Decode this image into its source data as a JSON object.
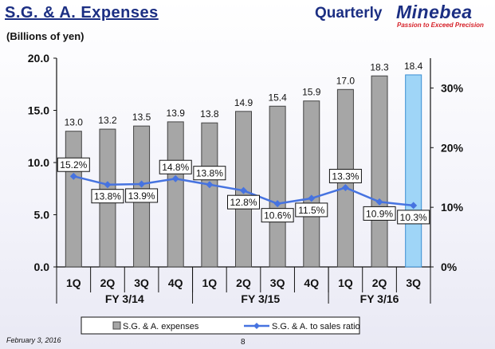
{
  "header": {
    "title": "S.G. & A. Expenses",
    "quarterly": "Quarterly",
    "logo": "Minebea",
    "tagline": "Passion to Exceed Precision",
    "unit": "(Billions of yen)"
  },
  "footer": {
    "date": "February 3, 2016",
    "page": "8"
  },
  "colors": {
    "bar": "#a6a6a6",
    "bar_highlight": "#9fd5f7",
    "line": "#4673e0"
  },
  "chart_data": {
    "type": "bar",
    "title": "S.G. & A. Expenses",
    "ylabel": "Billions of yen",
    "categories": [
      "1Q",
      "2Q",
      "3Q",
      "4Q",
      "1Q",
      "2Q",
      "3Q",
      "4Q",
      "1Q",
      "2Q",
      "3Q"
    ],
    "groups": [
      {
        "label": "FY 3/14",
        "count": 4
      },
      {
        "label": "FY 3/15",
        "count": 4
      },
      {
        "label": "FY 3/16",
        "count": 3
      }
    ],
    "ylim": [
      0,
      20
    ],
    "yticks": [
      "0.0",
      "5.0",
      "10.0",
      "15.0",
      "20.0"
    ],
    "y2lim": [
      0,
      35
    ],
    "y2ticks": [
      "0%",
      "10%",
      "20%",
      "30%"
    ],
    "series": [
      {
        "name": "S.G. & A. expenses",
        "type": "bar",
        "values": [
          13.0,
          13.2,
          13.5,
          13.9,
          13.8,
          14.9,
          15.4,
          15.9,
          17.0,
          18.3,
          18.4
        ],
        "labels": [
          "13.0",
          "13.2",
          "13.5",
          "13.9",
          "13.8",
          "14.9",
          "15.4",
          "15.9",
          "17.0",
          "18.3",
          "18.4"
        ],
        "highlight_index": 10
      },
      {
        "name": "S.G. & A. to sales ratio",
        "type": "line",
        "axis": "right",
        "values": [
          15.2,
          13.8,
          13.9,
          14.8,
          13.8,
          12.8,
          10.6,
          11.5,
          13.3,
          10.9,
          10.3
        ],
        "labels": [
          "15.2%",
          "13.8%",
          "13.9%",
          "14.8%",
          "13.8%",
          "12.8%",
          "10.6%",
          "11.5%",
          "13.3%",
          "10.9%",
          "10.3%"
        ]
      }
    ],
    "legend": [
      "S.G. & A. expenses",
      "S.G. & A. to sales ratio"
    ]
  }
}
